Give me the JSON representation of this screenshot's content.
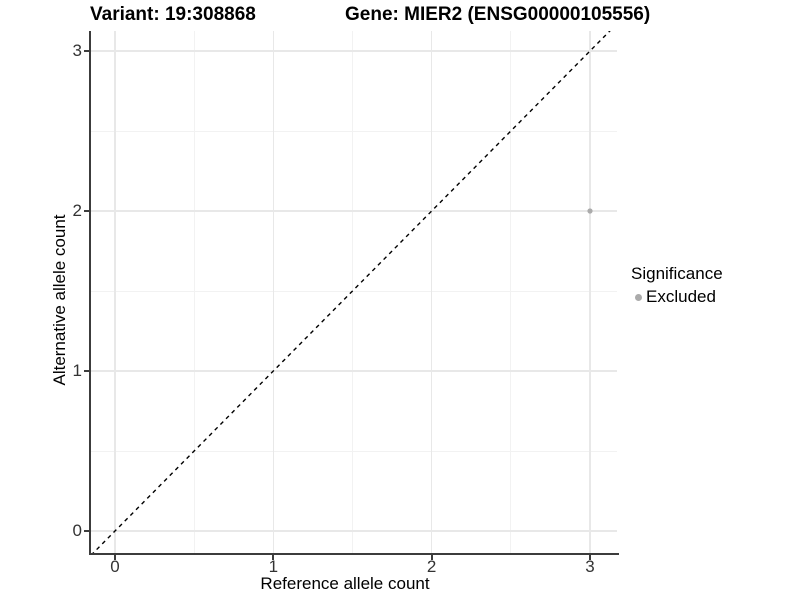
{
  "header": {
    "variant_title": "Variant: 19:308868",
    "gene_title": "Gene: MIER2 (ENSG00000105556)"
  },
  "axes": {
    "x": {
      "label": "Reference allele count",
      "tick_values": [
        0,
        1,
        2,
        3
      ],
      "tick_labels": [
        "0",
        "1",
        "2",
        "3"
      ]
    },
    "y": {
      "label": "Alternative allele count",
      "tick_values": [
        0,
        1,
        2,
        3
      ],
      "tick_labels": [
        "0",
        "1",
        "2",
        "3"
      ]
    }
  },
  "legend": {
    "title": "Significance",
    "items": [
      {
        "label": "Excluded",
        "marker": "circle",
        "color": "#ababab"
      }
    ]
  },
  "colors": {
    "background": "#ffffff",
    "grid_major": "#e8e8e8",
    "grid_minor": "#f2f2f2",
    "axis_line": "#3c3c3c",
    "tick_text": "#333333",
    "point": "#ababab",
    "reference_line": "#000000"
  },
  "chart_data": {
    "type": "scatter",
    "title_left": "Variant: 19:308868",
    "title_right": "Gene: MIER2 (ENSG00000105556)",
    "xlabel": "Reference allele count",
    "ylabel": "Alternative allele count",
    "xlim": [
      -0.15,
      3.15
    ],
    "ylim": [
      -0.15,
      3.15
    ],
    "x_ticks": [
      0,
      1,
      2,
      3
    ],
    "y_ticks": [
      0,
      1,
      2,
      3
    ],
    "grid": true,
    "legend_position": "right",
    "series": [
      {
        "name": "Excluded",
        "color": "#ababab",
        "marker": "circle",
        "points": [
          {
            "x": 3,
            "y": 2
          }
        ]
      }
    ],
    "reference_line": {
      "slope": 1,
      "intercept": 0,
      "style": "dashed",
      "color": "#000000"
    }
  }
}
